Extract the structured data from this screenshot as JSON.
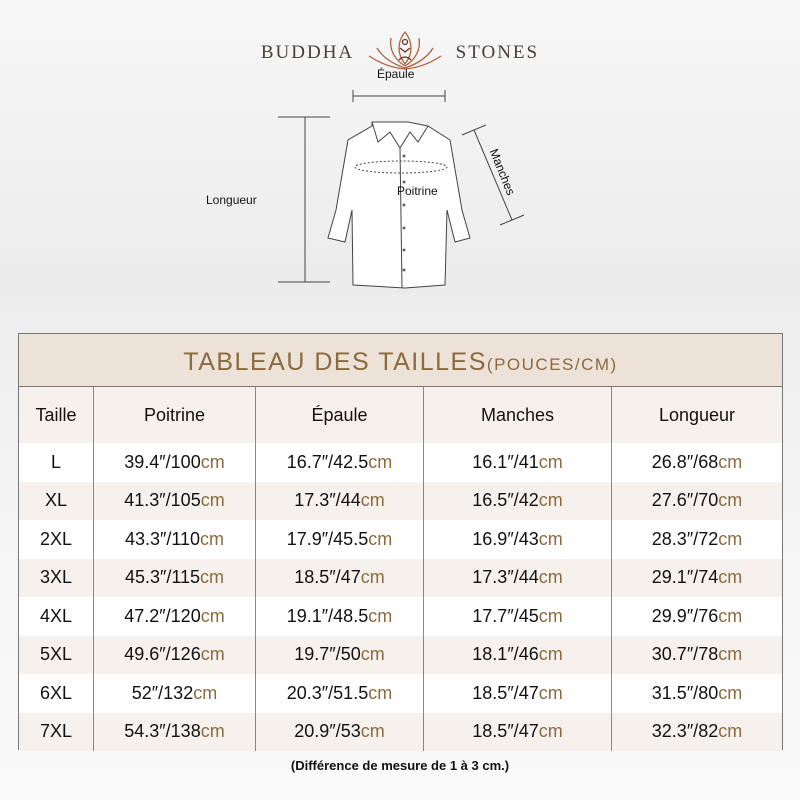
{
  "logo": {
    "left": "BUDDHA",
    "right": "STONES"
  },
  "diagram": {
    "epaule": "Épaule",
    "manches": "Manches",
    "poitrine": "Poitrine",
    "longueur": "Longueur"
  },
  "table": {
    "title": "TABLEAU DES TAILLES",
    "title_unit": "(POUCES/CM)",
    "headers": [
      "Taille",
      "Poitrine",
      "Épaule",
      "Manches",
      "Longueur"
    ],
    "unit": "cm",
    "rows": [
      [
        "L",
        "39.4″/100",
        "16.7″/42.5",
        "16.1″/41",
        "26.8″/68"
      ],
      [
        "XL",
        "41.3″/105",
        "17.3″/44",
        "16.5″/42",
        "27.6″/70"
      ],
      [
        "2XL",
        "43.3″/110",
        "17.9″/45.5",
        "16.9″/43",
        "28.3″/72"
      ],
      [
        "3XL",
        "45.3″/115",
        "18.5″/47",
        "17.3″/44",
        "29.1″/74"
      ],
      [
        "4XL",
        "47.2″/120",
        "19.1″/48.5",
        "17.7″/45",
        "29.9″/76"
      ],
      [
        "5XL",
        "49.6″/126",
        "19.7″/50",
        "18.1″/46",
        "30.7″/78"
      ],
      [
        "6XL",
        "52″/132",
        "20.3″/51.5",
        "18.5″/47",
        "31.5″/80"
      ],
      [
        "7XL",
        "54.3″/138",
        "20.9″/53",
        "18.5″/47",
        "32.3″/82"
      ]
    ]
  },
  "note": "(Différence de mesure de 1 à 3 cm.)",
  "colors": {
    "accent": "#8b6a3e",
    "title_band": "#ede2d8",
    "row_alt": "#f6f1ed"
  }
}
